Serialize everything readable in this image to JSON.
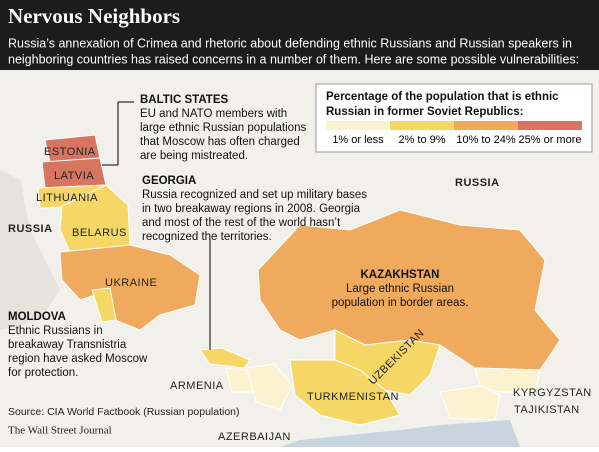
{
  "header": {
    "title": "Nervous Neighbors",
    "subtitle": [
      "Russia’s annexation of Crimea and rhetoric about defending ethnic Russians and Russian speakers in",
      "neighboring countries has raised concerns in a number of them. Here are some possible vulnerabilities:"
    ]
  },
  "legend": {
    "title": [
      "Percentage of the population that is ethnic",
      "Russian in former Soviet Republics:"
    ],
    "items": [
      {
        "label": "1% or less",
        "color": "#fbf3cf"
      },
      {
        "label": "2% to 9%",
        "color": "#f6d766"
      },
      {
        "label": "10% to 24%",
        "color": "#f0aa5e"
      },
      {
        "label": "25% or more",
        "color": "#d77561"
      }
    ]
  },
  "annotations": {
    "baltic": {
      "title": "BALTIC STATES",
      "body": [
        "EU and NATO members with",
        "large ethnic Russian populations",
        "that Moscow has often charged",
        "are being mistreated."
      ]
    },
    "georgia": {
      "title": "GEORGIA",
      "body": [
        "Russia recognized and set up military bases",
        "in two breakaway regions in 2008. Georgia",
        "and most of the rest of the world hasn’t",
        "recognized the territories."
      ]
    },
    "kazakhstan": {
      "title": "KAZAKHSTAN",
      "body": [
        "Large ethnic Russian",
        "population in border areas."
      ]
    },
    "moldova": {
      "title": "MOLDOVA",
      "body": [
        "Ethnic Russians in",
        "breakaway Transnistria",
        "region have asked Moscow",
        "for protection."
      ]
    }
  },
  "labels": {
    "russia_east": "RUSSIA",
    "russia_west": "RUSSIA",
    "estonia": "ESTONIA",
    "latvia": "LATVIA",
    "lithuania": "LITHUANIA",
    "belarus": "BELARUS",
    "ukraine": "UKRAINE",
    "armenia": "ARMENIA",
    "azerbaijan": "AZERBAIJAN",
    "uzbekistan": "UZBEKISTAN",
    "turkmenistan": "TURKMENISTAN",
    "kyrgyzstan": "KYRGYZSTAN",
    "tajikistan": "TAJIKISTAN"
  },
  "source": [
    "Source: CIA World Factbook (Russian population)",
    "The Wall Street Journal"
  ]
}
